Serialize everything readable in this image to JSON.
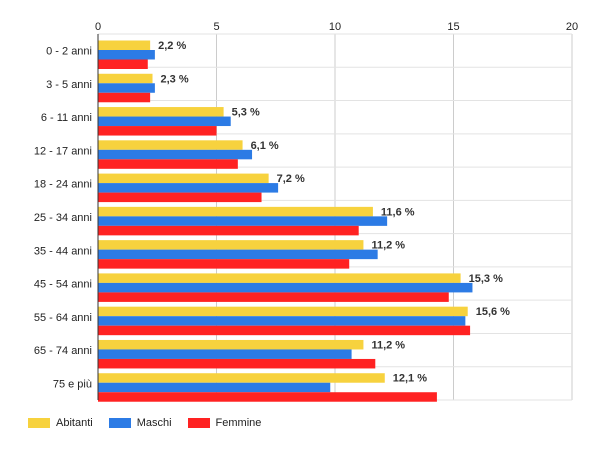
{
  "chart_data": {
    "type": "bar",
    "orientation": "horizontal",
    "categories": [
      "0 - 2 anni",
      "3 - 5 anni",
      "6 - 11 anni",
      "12 - 17 anni",
      "18 - 24 anni",
      "25 - 34 anni",
      "35 - 44 anni",
      "45 - 54 anni",
      "55 - 64 anni",
      "65 - 74 anni",
      "75 e più"
    ],
    "series": [
      {
        "name": "Abitanti",
        "color": "#f7d23e",
        "values": [
          2.2,
          2.3,
          5.3,
          6.1,
          7.2,
          11.6,
          11.2,
          15.3,
          15.6,
          11.2,
          12.1
        ]
      },
      {
        "name": "Maschi",
        "color": "#2c7be5",
        "values": [
          2.4,
          2.4,
          5.6,
          6.5,
          7.6,
          12.2,
          11.8,
          15.8,
          15.5,
          10.7,
          9.8
        ]
      },
      {
        "name": "Femmine",
        "color": "#ff2222",
        "values": [
          2.1,
          2.2,
          5.0,
          5.9,
          6.9,
          11.0,
          10.6,
          14.8,
          15.7,
          11.7,
          14.3
        ]
      }
    ],
    "data_labels": [
      "2,2 %",
      "2,3 %",
      "5,3 %",
      "6,1 %",
      "7,2 %",
      "11,6 %",
      "11,2 %",
      "15,3 %",
      "15,6 %",
      "11,2 %",
      "12,1 %"
    ],
    "xlim": [
      0,
      20
    ],
    "xticks": [
      "0",
      "5",
      "10",
      "15",
      "20"
    ],
    "grid": true,
    "legend_position": "bottom-left",
    "title": "",
    "xlabel": "",
    "ylabel": ""
  }
}
